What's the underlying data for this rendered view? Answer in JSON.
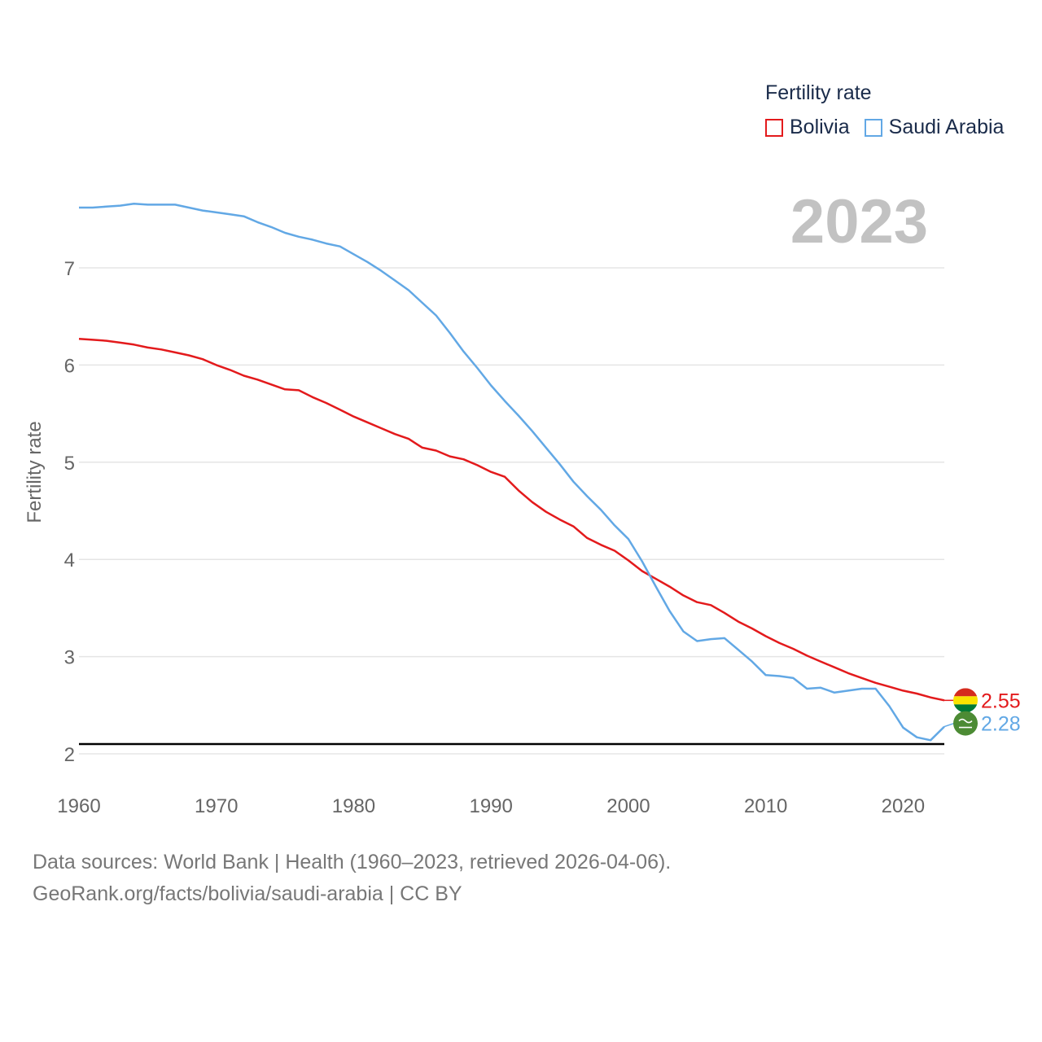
{
  "legend": {
    "title": "Fertility rate"
  },
  "year_label": "2023",
  "colors": {
    "bolivia": "#e31a1c",
    "saudi": "#62a8e5",
    "grid": "#e5e5e5",
    "axis_text": "#666666",
    "year_text": "#c2c2c2",
    "reference": "#000000"
  },
  "sources": {
    "line1": "Data sources: World Bank | Health (1960–2023, retrieved 2026-04-06).",
    "line2": "GeoRank.org/facts/bolivia/saudi-arabia | CC BY"
  },
  "chart_data": {
    "type": "line",
    "title": "Fertility rate",
    "xlabel": "",
    "ylabel": "Fertility rate",
    "xlim": [
      1960,
      2023
    ],
    "ylim": [
      2,
      7.9
    ],
    "x_ticks": [
      1960,
      1970,
      1980,
      1990,
      2000,
      2010,
      2020
    ],
    "y_ticks": [
      2,
      3,
      4,
      5,
      6,
      7
    ],
    "reference_line": 2.1,
    "x": [
      1960,
      1961,
      1962,
      1963,
      1964,
      1965,
      1966,
      1967,
      1968,
      1969,
      1970,
      1971,
      1972,
      1973,
      1974,
      1975,
      1976,
      1977,
      1978,
      1979,
      1980,
      1981,
      1982,
      1983,
      1984,
      1985,
      1986,
      1987,
      1988,
      1989,
      1990,
      1991,
      1992,
      1993,
      1994,
      1995,
      1996,
      1997,
      1998,
      1999,
      2000,
      2001,
      2002,
      2003,
      2004,
      2005,
      2006,
      2007,
      2008,
      2009,
      2010,
      2011,
      2012,
      2013,
      2014,
      2015,
      2016,
      2017,
      2018,
      2019,
      2020,
      2021,
      2022,
      2023
    ],
    "series": [
      {
        "name": "Bolivia",
        "end_label": "2.55",
        "values": [
          6.27,
          6.26,
          6.25,
          6.23,
          6.21,
          6.18,
          6.16,
          6.13,
          6.1,
          6.06,
          6.0,
          5.95,
          5.89,
          5.85,
          5.8,
          5.75,
          5.74,
          5.67,
          5.61,
          5.54,
          5.47,
          5.41,
          5.35,
          5.29,
          5.24,
          5.15,
          5.12,
          5.06,
          5.03,
          4.97,
          4.9,
          4.85,
          4.71,
          4.59,
          4.49,
          4.41,
          4.34,
          4.22,
          4.15,
          4.09,
          3.99,
          3.88,
          3.8,
          3.72,
          3.63,
          3.56,
          3.53,
          3.45,
          3.36,
          3.29,
          3.21,
          3.14,
          3.08,
          3.01,
          2.95,
          2.89,
          2.83,
          2.78,
          2.73,
          2.69,
          2.65,
          2.62,
          2.58,
          2.55
        ]
      },
      {
        "name": "Saudi Arabia",
        "end_label": "2.28",
        "values": [
          7.62,
          7.62,
          7.63,
          7.64,
          7.66,
          7.65,
          7.65,
          7.65,
          7.62,
          7.59,
          7.57,
          7.55,
          7.53,
          7.47,
          7.42,
          7.36,
          7.32,
          7.29,
          7.25,
          7.22,
          7.14,
          7.06,
          6.97,
          6.87,
          6.77,
          6.64,
          6.51,
          6.33,
          6.14,
          5.97,
          5.79,
          5.63,
          5.48,
          5.32,
          5.15,
          4.98,
          4.8,
          4.65,
          4.51,
          4.35,
          4.21,
          3.98,
          3.72,
          3.47,
          3.26,
          3.16,
          3.18,
          3.19,
          3.07,
          2.95,
          2.81,
          2.8,
          2.78,
          2.67,
          2.68,
          2.63,
          2.65,
          2.67,
          2.67,
          2.49,
          2.27,
          2.17,
          2.14,
          2.28
        ]
      }
    ]
  }
}
